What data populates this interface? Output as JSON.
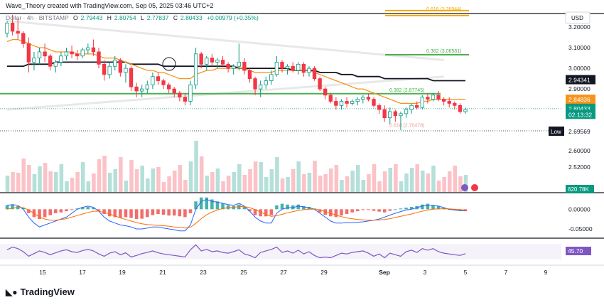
{
  "header": {
    "attribution": "Wave_Theory created with TradingView.com, Sep 05, 2025 03:46 UTC+2",
    "symbol": "Dollar · 4h · BITSTAMP",
    "open_label": "O",
    "open": "2.79443",
    "high_label": "H",
    "high": "2.80754",
    "low_label": "L",
    "low": "2.77837",
    "close_label": "C",
    "close": "2.80433",
    "change": "+0.00979 (+0.35%)"
  },
  "currency_button": "USD",
  "footer": {
    "brand": "TradingView"
  },
  "chart_data": {
    "type": "candlestick",
    "interval": "4h",
    "x_tick_labels": [
      "15",
      "17",
      "19",
      "21",
      "23",
      "25",
      "27",
      "29",
      "Sep",
      "3",
      "5",
      "7",
      "9"
    ],
    "price_axis": {
      "ylim": [
        2.4,
        3.28
      ],
      "tick_labels": [
        "3.20000",
        "3.10000",
        "3.00000",
        "2.90000",
        "2.60000",
        "2.52000"
      ]
    },
    "candles": [
      [
        3.17,
        3.23,
        3.15,
        3.22
      ],
      [
        3.22,
        3.26,
        3.16,
        3.18
      ],
      [
        3.18,
        3.24,
        3.14,
        3.17
      ],
      [
        3.17,
        3.18,
        3.1,
        3.12
      ],
      [
        3.12,
        3.15,
        2.98,
        3.03
      ],
      [
        3.03,
        3.08,
        2.99,
        3.05
      ],
      [
        3.05,
        3.1,
        3.02,
        3.08
      ],
      [
        3.08,
        3.12,
        3.03,
        3.06
      ],
      [
        3.06,
        3.07,
        2.99,
        3.01
      ],
      [
        3.01,
        3.04,
        2.98,
        3.03
      ],
      [
        3.03,
        3.08,
        3.01,
        3.06
      ],
      [
        3.06,
        3.1,
        3.04,
        3.08
      ],
      [
        3.08,
        3.11,
        3.05,
        3.07
      ],
      [
        3.07,
        3.09,
        3.04,
        3.06
      ],
      [
        3.06,
        3.1,
        3.05,
        3.09
      ],
      [
        3.09,
        3.12,
        3.07,
        3.1
      ],
      [
        3.1,
        3.14,
        3.06,
        3.08
      ],
      [
        3.08,
        3.1,
        3.0,
        3.02
      ],
      [
        3.02,
        3.04,
        2.94,
        2.97
      ],
      [
        2.97,
        3.03,
        2.95,
        3.01
      ],
      [
        3.01,
        3.06,
        2.99,
        3.04
      ],
      [
        3.04,
        3.05,
        2.96,
        2.98
      ],
      [
        2.98,
        3.02,
        2.93,
        3.0
      ],
      [
        3.0,
        3.01,
        2.89,
        2.91
      ],
      [
        2.91,
        2.93,
        2.86,
        2.89
      ],
      [
        2.89,
        2.92,
        2.86,
        2.9
      ],
      [
        2.9,
        2.94,
        2.88,
        2.92
      ],
      [
        2.92,
        2.98,
        2.9,
        2.96
      ],
      [
        2.96,
        2.98,
        2.92,
        2.94
      ],
      [
        2.94,
        2.95,
        2.9,
        2.92
      ],
      [
        2.92,
        2.93,
        2.88,
        2.9
      ],
      [
        2.9,
        2.91,
        2.86,
        2.88
      ],
      [
        2.88,
        2.89,
        2.84,
        2.86
      ],
      [
        2.86,
        2.88,
        2.82,
        2.84
      ],
      [
        2.84,
        2.94,
        2.82,
        2.92
      ],
      [
        2.92,
        3.1,
        2.9,
        3.07
      ],
      [
        3.07,
        3.08,
        3.0,
        3.02
      ],
      [
        3.02,
        3.06,
        2.99,
        3.05
      ],
      [
        3.05,
        3.07,
        3.01,
        3.03
      ],
      [
        3.03,
        3.05,
        3.0,
        3.04
      ],
      [
        3.04,
        3.06,
        3.01,
        3.02
      ],
      [
        3.02,
        3.03,
        2.98,
        3.0
      ],
      [
        3.0,
        3.02,
        2.97,
        3.01
      ],
      [
        3.01,
        3.12,
        2.99,
        3.03
      ],
      [
        3.03,
        3.05,
        2.97,
        2.99
      ],
      [
        2.99,
        3.0,
        2.93,
        2.95
      ],
      [
        2.95,
        2.96,
        2.87,
        2.9
      ],
      [
        2.9,
        2.94,
        2.86,
        2.92
      ],
      [
        2.92,
        2.96,
        2.9,
        2.94
      ],
      [
        2.94,
        2.99,
        2.92,
        2.97
      ],
      [
        2.97,
        3.06,
        2.96,
        3.03
      ],
      [
        3.03,
        3.04,
        2.98,
        3.0
      ],
      [
        3.0,
        3.02,
        2.97,
        3.01
      ],
      [
        3.01,
        3.03,
        2.98,
        2.99
      ],
      [
        2.99,
        3.03,
        2.97,
        3.02
      ],
      [
        3.02,
        3.03,
        2.96,
        2.98
      ],
      [
        2.98,
        3.01,
        2.96,
        3.0
      ],
      [
        3.0,
        3.01,
        2.94,
        2.95
      ],
      [
        2.95,
        2.96,
        2.89,
        2.9
      ],
      [
        2.9,
        2.91,
        2.85,
        2.87
      ],
      [
        2.87,
        2.88,
        2.83,
        2.84
      ],
      [
        2.84,
        2.86,
        2.8,
        2.82
      ],
      [
        2.82,
        2.85,
        2.8,
        2.84
      ],
      [
        2.84,
        2.86,
        2.81,
        2.83
      ],
      [
        2.83,
        2.85,
        2.82,
        2.84
      ],
      [
        2.84,
        2.86,
        2.82,
        2.85
      ],
      [
        2.85,
        2.87,
        2.83,
        2.86
      ],
      [
        2.86,
        2.88,
        2.84,
        2.85
      ],
      [
        2.85,
        2.86,
        2.81,
        2.82
      ],
      [
        2.82,
        2.83,
        2.78,
        2.8
      ],
      [
        2.8,
        2.82,
        2.74,
        2.76
      ],
      [
        2.76,
        2.81,
        2.73,
        2.79
      ],
      [
        2.79,
        2.8,
        2.74,
        2.77
      ],
      [
        2.77,
        2.79,
        2.7,
        2.78
      ],
      [
        2.78,
        2.81,
        2.76,
        2.8
      ],
      [
        2.8,
        2.83,
        2.78,
        2.82
      ],
      [
        2.82,
        2.84,
        2.8,
        2.81
      ],
      [
        2.81,
        2.87,
        2.8,
        2.86
      ],
      [
        2.86,
        2.88,
        2.83,
        2.85
      ],
      [
        2.85,
        2.88,
        2.84,
        2.87
      ],
      [
        2.87,
        2.89,
        2.84,
        2.85
      ],
      [
        2.85,
        2.86,
        2.82,
        2.84
      ],
      [
        2.84,
        2.86,
        2.81,
        2.83
      ],
      [
        2.83,
        2.84,
        2.8,
        2.82
      ],
      [
        2.82,
        2.83,
        2.78,
        2.79
      ],
      [
        2.79,
        2.81,
        2.78,
        2.8
      ]
    ],
    "ema_orange": [
      3.13,
      3.14,
      3.14,
      3.13,
      3.12,
      3.11,
      3.1,
      3.1,
      3.09,
      3.08,
      3.08,
      3.08,
      3.08,
      3.07,
      3.07,
      3.07,
      3.07,
      3.06,
      3.05,
      3.05,
      3.05,
      3.04,
      3.03,
      3.02,
      3.01,
      3.0,
      2.99,
      2.99,
      2.98,
      2.98,
      2.97,
      2.96,
      2.95,
      2.95,
      2.95,
      2.97,
      2.98,
      2.99,
      2.99,
      3.0,
      3.0,
      3.0,
      3.0,
      3.0,
      3.0,
      2.99,
      2.98,
      2.98,
      2.98,
      2.98,
      2.99,
      2.99,
      2.99,
      2.99,
      2.99,
      2.99,
      2.99,
      2.98,
      2.97,
      2.96,
      2.95,
      2.94,
      2.93,
      2.92,
      2.91,
      2.9,
      2.9,
      2.89,
      2.88,
      2.87,
      2.86,
      2.85,
      2.84,
      2.83,
      2.83,
      2.83,
      2.83,
      2.84,
      2.84,
      2.85,
      2.85,
      2.85,
      2.85,
      2.85,
      2.85,
      2.85
    ],
    "sma_black": [
      3.01,
      3.01,
      3.01,
      3.01,
      3.02,
      3.02,
      3.02,
      3.02,
      3.02,
      3.03,
      3.03,
      3.03,
      3.03,
      3.03,
      3.03,
      3.03,
      3.03,
      3.03,
      3.03,
      3.03,
      3.03,
      3.03,
      3.03,
      3.02,
      3.02,
      3.02,
      3.02,
      3.02,
      3.02,
      3.01,
      3.01,
      3.01,
      3.01,
      3.01,
      3.01,
      3.01,
      3.01,
      3.01,
      3.01,
      3.01,
      3.01,
      3.01,
      3.01,
      3.0,
      3.0,
      3.0,
      3.0,
      3.0,
      3.0,
      3.0,
      3.0,
      3.0,
      3.0,
      2.99,
      2.99,
      2.99,
      2.99,
      2.99,
      2.98,
      2.98,
      2.98,
      2.98,
      2.97,
      2.97,
      2.97,
      2.96,
      2.96,
      2.96,
      2.96,
      2.96,
      2.95,
      2.95,
      2.95,
      2.95,
      2.95,
      2.95,
      2.95,
      2.95,
      2.95,
      2.94,
      2.94,
      2.94,
      2.94,
      2.94,
      2.94,
      2.94
    ],
    "fib_levels": [
      {
        "label": "0.618 (3.26944)",
        "value": 3.27,
        "color": "#f2a900"
      },
      {
        "label": "0.382 (3.06581)",
        "value": 3.066,
        "color": "#4caf50"
      },
      {
        "label": "0.382 (2.87745)",
        "value": 2.877,
        "color": "#4caf50"
      },
      {
        "label": "0.618 (2.70478)",
        "value": 2.705,
        "color": "#ef9a9a"
      }
    ],
    "price_labels": [
      {
        "label": "2.94341",
        "value": 2.9434,
        "bg": "#131722",
        "fg": "#ffffff"
      },
      {
        "label": "2.84836",
        "value": 2.8484,
        "bg": "#f7931a",
        "fg": "#ffffff"
      },
      {
        "label": "2.80433",
        "value": 2.8043,
        "bg": "#089981",
        "fg": "#ffffff"
      },
      {
        "label": "02:13:32",
        "value": 2.775,
        "bg": "#089981",
        "fg": "#ffffff"
      }
    ],
    "low_marker": {
      "label": "Low",
      "value": "2.69569"
    },
    "volume_label": "620.78K",
    "macd": {
      "tick_labels": [
        "0.00000",
        "-0.05000"
      ],
      "hist": [
        0.01,
        0.012,
        0.008,
        0.004,
        -0.01,
        -0.02,
        -0.025,
        -0.02,
        -0.015,
        -0.01,
        -0.008,
        -0.005,
        -0.002,
        0.002,
        0.005,
        0.006,
        0.004,
        -0.004,
        -0.012,
        -0.018,
        -0.02,
        -0.022,
        -0.02,
        -0.022,
        -0.025,
        -0.024,
        -0.02,
        -0.015,
        -0.012,
        -0.014,
        -0.016,
        -0.016,
        -0.018,
        -0.02,
        -0.01,
        0.02,
        0.03,
        0.03,
        0.025,
        0.02,
        0.015,
        0.01,
        0.008,
        0.012,
        0.006,
        -0.005,
        -0.015,
        -0.018,
        -0.018,
        -0.015,
        0.01,
        0.014,
        0.012,
        0.01,
        0.012,
        0.008,
        0.006,
        0.002,
        -0.008,
        -0.014,
        -0.018,
        -0.02,
        -0.016,
        -0.012,
        -0.008,
        -0.005,
        -0.002,
        -0.002,
        -0.004,
        -0.006,
        -0.008,
        -0.004,
        0.0,
        0.002,
        0.004,
        0.006,
        0.008,
        0.012,
        0.014,
        0.01,
        0.008,
        0.004,
        0.0,
        -0.002,
        -0.004,
        -0.005
      ],
      "macd_line": [
        0.01,
        0.012,
        0.01,
        0.0,
        -0.02,
        -0.035,
        -0.045,
        -0.04,
        -0.035,
        -0.03,
        -0.025,
        -0.02,
        -0.01,
        0.0,
        0.005,
        0.008,
        0.005,
        -0.005,
        -0.02,
        -0.03,
        -0.035,
        -0.04,
        -0.042,
        -0.045,
        -0.05,
        -0.05,
        -0.048,
        -0.045,
        -0.045,
        -0.048,
        -0.05,
        -0.052,
        -0.055,
        -0.055,
        -0.04,
        0.0,
        0.02,
        0.025,
        0.02,
        0.018,
        0.015,
        0.012,
        0.01,
        0.015,
        0.008,
        -0.005,
        -0.02,
        -0.03,
        -0.035,
        -0.035,
        -0.01,
        0.0,
        0.004,
        0.004,
        0.008,
        0.006,
        0.004,
        0.0,
        -0.01,
        -0.02,
        -0.03,
        -0.035,
        -0.035,
        -0.034,
        -0.034,
        -0.033,
        -0.032,
        -0.03,
        -0.028,
        -0.025,
        -0.02,
        -0.015,
        -0.01,
        -0.006,
        -0.002,
        0.0,
        0.004,
        0.008,
        0.01,
        0.01,
        0.008,
        0.004,
        0.0,
        -0.002,
        -0.004,
        -0.004
      ],
      "signal_line": [
        0.0,
        0.003,
        0.005,
        0.004,
        -0.002,
        -0.01,
        -0.02,
        -0.025,
        -0.028,
        -0.028,
        -0.026,
        -0.024,
        -0.02,
        -0.016,
        -0.012,
        -0.008,
        -0.005,
        -0.005,
        -0.008,
        -0.012,
        -0.017,
        -0.022,
        -0.026,
        -0.03,
        -0.034,
        -0.037,
        -0.039,
        -0.04,
        -0.041,
        -0.042,
        -0.043,
        -0.045,
        -0.046,
        -0.048,
        -0.046,
        -0.036,
        -0.024,
        -0.014,
        -0.007,
        -0.002,
        0.002,
        0.004,
        0.005,
        0.007,
        0.007,
        0.004,
        -0.001,
        -0.007,
        -0.013,
        -0.018,
        -0.016,
        -0.013,
        -0.009,
        -0.006,
        -0.003,
        -0.001,
        0.0,
        0.0,
        -0.002,
        -0.006,
        -0.01,
        -0.015,
        -0.019,
        -0.022,
        -0.024,
        -0.026,
        -0.027,
        -0.028,
        -0.028,
        -0.027,
        -0.026,
        -0.024,
        -0.021,
        -0.018,
        -0.015,
        -0.012,
        -0.008,
        -0.005,
        -0.002,
        0.0,
        0.001,
        0.001,
        0.001,
        0.0,
        -0.001,
        -0.002
      ]
    },
    "rsi": {
      "label": "45.70",
      "values": [
        55,
        62,
        58,
        50,
        38,
        45,
        52,
        48,
        42,
        47,
        52,
        55,
        50,
        48,
        53,
        56,
        52,
        44,
        38,
        46,
        50,
        42,
        47,
        36,
        40,
        45,
        48,
        52,
        47,
        44,
        42,
        40,
        38,
        36,
        55,
        68,
        52,
        56,
        50,
        52,
        48,
        46,
        50,
        55,
        44,
        40,
        34,
        48,
        52,
        56,
        62,
        48,
        52,
        46,
        54,
        44,
        50,
        40,
        34,
        36,
        34,
        40,
        46,
        44,
        48,
        50,
        52,
        46,
        38,
        44,
        34,
        46,
        42,
        38,
        50,
        54,
        48,
        58,
        54,
        58,
        50,
        46,
        44,
        42,
        40,
        45
      ]
    }
  }
}
